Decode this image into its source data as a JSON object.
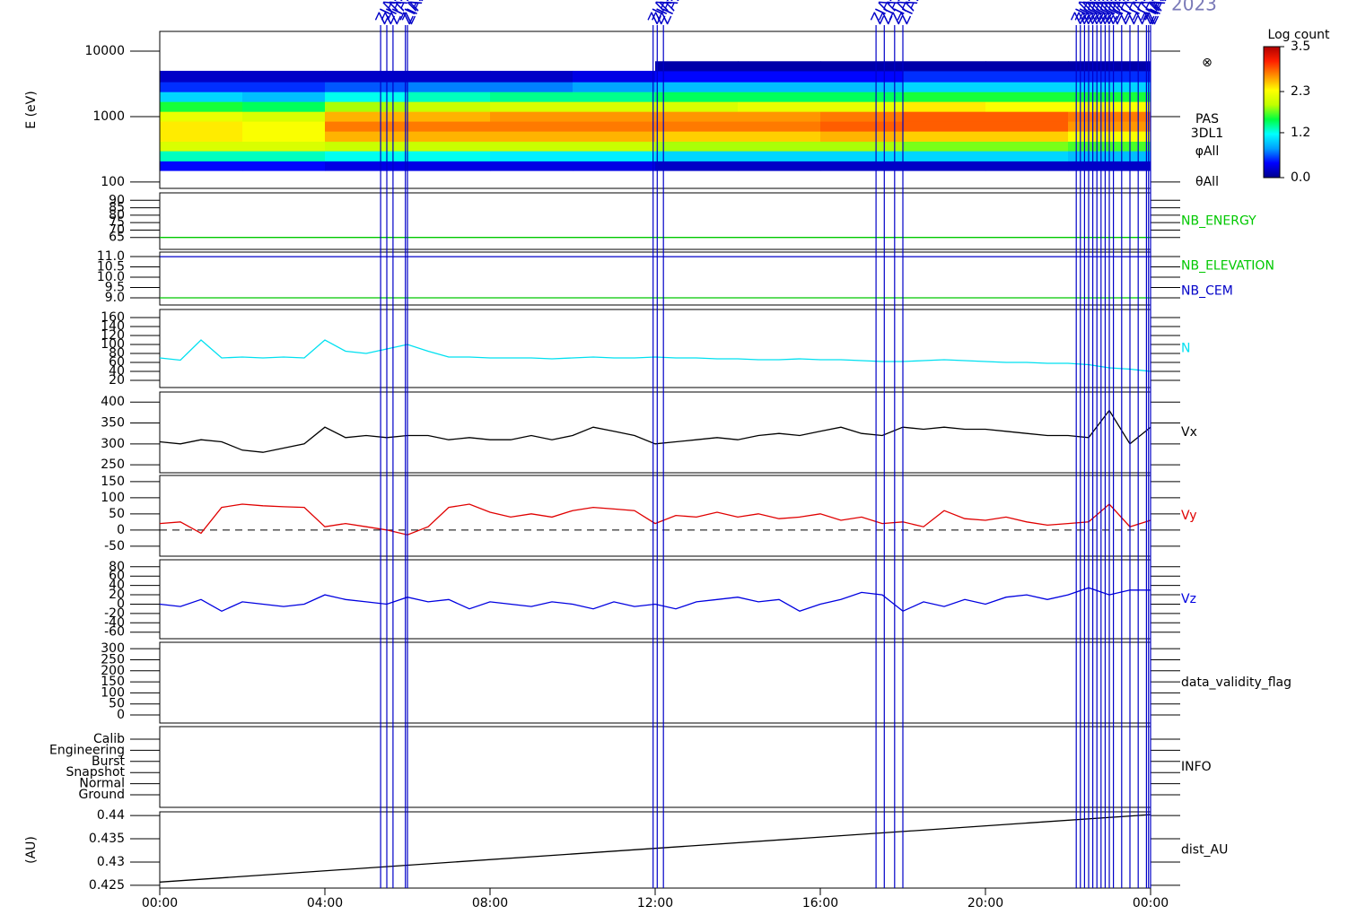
{
  "title": "2023",
  "xaxis": {
    "xlim": [
      0,
      24
    ],
    "xticks": [
      {
        "value": 0,
        "label": "00:00"
      },
      {
        "value": 4,
        "label": "04:00"
      },
      {
        "value": 8,
        "label": "08:00"
      },
      {
        "value": 12,
        "label": "12:00"
      },
      {
        "value": 16,
        "label": "16:00"
      },
      {
        "value": 20,
        "label": "20:00"
      },
      {
        "value": 24,
        "label": "00:00"
      }
    ],
    "time": [
      0,
      0.5,
      1,
      1.5,
      2,
      2.5,
      3,
      3.5,
      4,
      4.5,
      5,
      5.5,
      6,
      6.5,
      7,
      7.5,
      8,
      8.5,
      9,
      9.5,
      10,
      10.5,
      11,
      11.5,
      12,
      12.5,
      13,
      13.5,
      14,
      14.5,
      15,
      15.5,
      16,
      16.5,
      17,
      17.5,
      18,
      18.5,
      19,
      19.5,
      20,
      20.5,
      21,
      21.5,
      22,
      22.5,
      23,
      23.5,
      24
    ]
  },
  "events": {
    "label": "ZIAS",
    "color": "#0000c8",
    "times": [
      5.35,
      5.5,
      5.65,
      5.95,
      6.0,
      11.95,
      12.05,
      12.2,
      17.35,
      17.55,
      17.8,
      18.0,
      22.2,
      22.3,
      22.4,
      22.5,
      22.6,
      22.7,
      22.8,
      22.9,
      23.0,
      23.1,
      23.3,
      23.5,
      23.7,
      23.9,
      23.95,
      24.0
    ]
  },
  "chart_data": [
    {
      "type": "heatmap",
      "ylabel": "E (eV)",
      "ylog": true,
      "ylim": [
        80,
        20000
      ],
      "yticks": [
        100,
        1000,
        10000
      ],
      "annotations": [
        "⊗",
        "PAS",
        "3DL1",
        "φAll",
        "θAll"
      ],
      "x_bins": [
        0,
        2,
        4,
        6,
        8,
        10,
        12,
        14,
        16,
        18,
        20,
        22,
        24
      ],
      "y_bins": [
        150,
        210,
        300,
        420,
        600,
        850,
        1200,
        1700,
        2400,
        3400,
        5000,
        7000
      ],
      "z": [
        [
          0.4,
          1.3,
          2.1,
          2.4,
          2.4,
          2.2,
          1.6,
          1.0,
          0.5,
          0.2,
          null
        ],
        [
          0.4,
          1.3,
          2.1,
          2.3,
          2.3,
          2.1,
          1.5,
          0.9,
          0.5,
          0.2,
          null
        ],
        [
          0.3,
          1.2,
          2.0,
          2.6,
          2.8,
          2.6,
          1.9,
          1.2,
          0.6,
          0.2,
          null
        ],
        [
          0.3,
          1.2,
          2.0,
          2.6,
          2.8,
          2.6,
          2.0,
          1.3,
          0.7,
          0.2,
          null
        ],
        [
          0.3,
          1.1,
          2.0,
          2.6,
          2.8,
          2.7,
          2.1,
          1.4,
          0.7,
          0.2,
          null
        ],
        [
          0.3,
          1.1,
          2.0,
          2.6,
          2.8,
          2.7,
          2.1,
          1.4,
          0.8,
          0.3,
          null
        ],
        [
          0.2,
          1.0,
          1.9,
          2.5,
          2.8,
          2.7,
          2.1,
          1.5,
          0.9,
          0.4,
          0.1
        ],
        [
          0.2,
          1.0,
          1.9,
          2.5,
          2.8,
          2.7,
          2.2,
          1.5,
          0.9,
          0.4,
          0.1
        ],
        [
          0.2,
          1.0,
          1.9,
          2.6,
          2.9,
          2.8,
          2.2,
          1.5,
          0.9,
          0.4,
          0.1
        ],
        [
          0.2,
          1.0,
          1.8,
          2.5,
          2.9,
          2.9,
          2.4,
          1.6,
          1.0,
          0.5,
          0.1
        ],
        [
          0.2,
          1.0,
          1.8,
          2.5,
          2.9,
          2.9,
          2.3,
          1.6,
          1.0,
          0.5,
          0.1
        ],
        [
          0.2,
          0.9,
          1.7,
          2.3,
          2.7,
          2.8,
          2.3,
          1.6,
          1.0,
          0.5,
          0.1
        ]
      ],
      "colormap": [
        "#00008c",
        "#0000ff",
        "#00a0ff",
        "#00ffff",
        "#00ff40",
        "#c0ff00",
        "#ffff00",
        "#ff9000",
        "#ff2000",
        "#b00000"
      ],
      "colorbar": {
        "title": "Log count",
        "lim": [
          0,
          3.5
        ],
        "ticks": [
          {
            "value": 0,
            "label": "0.0"
          },
          1.2,
          2.3,
          3.5
        ]
      }
    },
    {
      "type": "line",
      "ylim": [
        57,
        95
      ],
      "yticks": [
        65,
        70,
        75,
        80,
        85,
        90
      ],
      "series": [
        {
          "name": "NB_ENERGY",
          "color": "#00c800",
          "x": [
            0,
            24
          ],
          "values": [
            65,
            65
          ]
        }
      ]
    },
    {
      "type": "line",
      "ylim": [
        8.65,
        11.22
      ],
      "yticks": [
        {
          "value": 9,
          "label": "9.0"
        },
        9.5,
        {
          "value": 10,
          "label": "10.0"
        },
        10.5,
        {
          "value": 11,
          "label": "11.0"
        }
      ],
      "series": [
        {
          "name": "NB_ELEVATION",
          "color": "#00c800",
          "x": [
            0,
            24
          ],
          "values": [
            9,
            9
          ]
        },
        {
          "name": "NB_CEM",
          "color": "#0000c8",
          "x": [
            0,
            24
          ],
          "values": [
            11,
            11
          ]
        }
      ]
    },
    {
      "type": "line",
      "ylim": [
        4,
        178
      ],
      "yticks": [
        20,
        40,
        60,
        80,
        100,
        120,
        140,
        160
      ],
      "series": [
        {
          "name": "N",
          "color": "#00e0f0",
          "values": [
            70,
            65,
            110,
            70,
            72,
            70,
            72,
            70,
            110,
            85,
            80,
            90,
            100,
            85,
            72,
            72,
            70,
            70,
            70,
            68,
            70,
            72,
            70,
            70,
            72,
            70,
            70,
            68,
            68,
            66,
            66,
            68,
            66,
            66,
            64,
            62,
            62,
            64,
            66,
            64,
            62,
            60,
            60,
            58,
            58,
            55,
            48,
            45,
            40
          ]
        }
      ]
    },
    {
      "type": "line",
      "ylim": [
        231,
        424
      ],
      "yticks": [
        250,
        300,
        350,
        400
      ],
      "series": [
        {
          "name": "Vx",
          "color": "#000000",
          "values": [
            305,
            300,
            310,
            305,
            285,
            280,
            290,
            300,
            340,
            315,
            320,
            315,
            320,
            320,
            310,
            315,
            310,
            310,
            320,
            310,
            320,
            340,
            330,
            320,
            300,
            305,
            310,
            315,
            310,
            320,
            325,
            320,
            330,
            340,
            325,
            320,
            340,
            335,
            340,
            335,
            335,
            330,
            325,
            320,
            320,
            315,
            380,
            300,
            340
          ]
        }
      ]
    },
    {
      "type": "line",
      "ylim": [
        -81,
        169
      ],
      "yticks": [
        -50,
        0,
        50,
        100,
        150
      ],
      "refline": 0,
      "series": [
        {
          "name": "Vy",
          "color": "#e00000",
          "values": [
            20,
            25,
            -10,
            70,
            80,
            75,
            72,
            70,
            10,
            20,
            10,
            0,
            -15,
            10,
            70,
            80,
            55,
            40,
            50,
            40,
            60,
            70,
            65,
            60,
            20,
            45,
            40,
            55,
            40,
            50,
            35,
            40,
            50,
            30,
            40,
            20,
            25,
            10,
            60,
            35,
            30,
            40,
            25,
            15,
            20,
            25,
            80,
            10,
            30
          ]
        }
      ]
    },
    {
      "type": "line",
      "ylim": [
        -74,
        95
      ],
      "yticks": [
        -60,
        -40,
        -20,
        0,
        20,
        40,
        60,
        80
      ],
      "series": [
        {
          "name": "Vz",
          "color": "#0000e0",
          "values": [
            0,
            -5,
            10,
            -15,
            5,
            0,
            -5,
            0,
            20,
            10,
            5,
            0,
            15,
            5,
            10,
            -10,
            5,
            0,
            -5,
            5,
            0,
            -10,
            5,
            -5,
            0,
            -10,
            5,
            10,
            15,
            5,
            10,
            -15,
            0,
            10,
            25,
            20,
            -15,
            5,
            -5,
            10,
            0,
            15,
            20,
            10,
            20,
            35,
            20,
            30,
            30
          ]
        }
      ]
    },
    {
      "type": "line",
      "ylim": [
        -36.5,
        329
      ],
      "yticks": [
        0,
        50,
        100,
        150,
        200,
        250,
        300
      ],
      "label": "data_validity_flag"
    },
    {
      "type": "category",
      "categories": [
        "Ground",
        "Normal",
        "Snapshot",
        "Burst",
        "Engineering",
        "Calib"
      ],
      "label": "INFO"
    },
    {
      "type": "line",
      "ylabel": "(AU)",
      "ylim": [
        0.4244,
        0.4408
      ],
      "yticks": [
        0.425,
        0.43,
        0.435,
        0.44
      ],
      "series": [
        {
          "name": "dist_AU",
          "color": "#000000",
          "x": [
            0,
            24
          ],
          "values": [
            0.4257,
            0.4402
          ]
        }
      ]
    }
  ]
}
